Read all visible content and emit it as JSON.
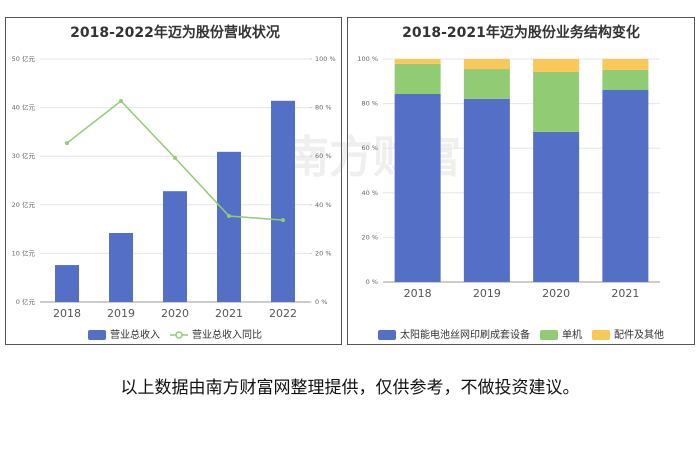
{
  "chart_data": [
    {
      "type": "bar",
      "title": "2018-2022年迈为股份营收状况",
      "categories": [
        "2018",
        "2019",
        "2020",
        "2021",
        "2022"
      ],
      "series": [
        {
          "name": "营业总收入",
          "color": "#5470c6",
          "values": [
            7.6,
            14.2,
            22.8,
            30.9,
            41.4
          ]
        },
        {
          "name": "营业总收入同比",
          "color": "#91cc75",
          "type": "line",
          "axis": "y2",
          "values": [
            65.4,
            82.7,
            59.3,
            35.4,
            33.7
          ]
        }
      ],
      "ylim": [
        0,
        50
      ],
      "yticks": [
        {
          "value": 0,
          "label": "0 亿元"
        },
        {
          "value": 10,
          "label": "10 亿元"
        },
        {
          "value": 20,
          "label": "20 亿元"
        },
        {
          "value": 30,
          "label": "30 亿元"
        },
        {
          "value": 40,
          "label": "40 亿元"
        },
        {
          "value": 50,
          "label": "50 亿元"
        }
      ],
      "y2lim": [
        0,
        100
      ],
      "y2ticks": [
        {
          "value": 0,
          "label": "0 %"
        },
        {
          "value": 20,
          "label": "20 %"
        },
        {
          "value": 40,
          "label": "40 %"
        },
        {
          "value": 60,
          "label": "60 %"
        },
        {
          "value": 80,
          "label": "80 %"
        },
        {
          "value": 100,
          "label": "100 %"
        }
      ],
      "grid": true
    },
    {
      "type": "stacked_bar",
      "title": "2018-2021年迈为股份业务结构变化",
      "categories": [
        "2018",
        "2019",
        "2020",
        "2021"
      ],
      "series": [
        {
          "name": "太阳能电池丝网印刷成套设备",
          "color": "#5470c6",
          "values": [
            84.3,
            82.1,
            67.3,
            86.1
          ]
        },
        {
          "name": "单机",
          "color": "#91cc75",
          "values": [
            13.5,
            13.4,
            26.9,
            9.0
          ]
        },
        {
          "name": "配件及其他",
          "color": "#fac858",
          "values": [
            2.2,
            4.5,
            5.8,
            4.9
          ]
        }
      ],
      "ylim": [
        0,
        100
      ],
      "yticks": [
        {
          "value": 0,
          "label": "0 %"
        },
        {
          "value": 20,
          "label": "20 %"
        },
        {
          "value": 40,
          "label": "40 %"
        },
        {
          "value": 60,
          "label": "60 %"
        },
        {
          "value": 80,
          "label": "80 %"
        },
        {
          "value": 100,
          "label": "100 %"
        }
      ],
      "grid": true
    }
  ],
  "watermark": "南方财富网",
  "footer": "以上数据由南方财富网整理提供，仅供参考，不做投资建议。"
}
